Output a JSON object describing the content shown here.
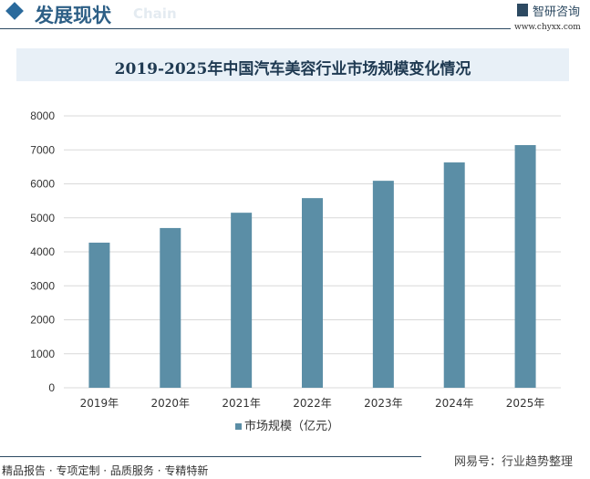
{
  "header": {
    "section_title": "发展现状",
    "section_title_en": "Chain",
    "brand": "智研咨询",
    "brand_url": "www.chyxx.com"
  },
  "footer": {
    "tagline": "精品报告 · 专项定制 · 品质服务 · 专精特新",
    "source": "网易号：行业趋势整理"
  },
  "colors": {
    "bar": "#5b8ea6",
    "title_band": "#e8f0f7",
    "accent": "#2d5f86"
  },
  "chart_data": {
    "type": "bar",
    "title": "2019-2025年中国汽车美容行业市场规模变化情况",
    "categories": [
      "2019年",
      "2020年",
      "2021年",
      "2022年",
      "2023年",
      "2024年",
      "2025年"
    ],
    "series": [
      {
        "name": "市场规模（亿元）",
        "values": [
          4270,
          4700,
          5150,
          5580,
          6090,
          6630,
          7140
        ]
      }
    ],
    "yticks": [
      "0",
      "1000",
      "2000",
      "3000",
      "4000",
      "5000",
      "6000",
      "7000",
      "8000"
    ],
    "ylim": [
      0,
      8000
    ],
    "grid": true,
    "legend": "bottom"
  }
}
